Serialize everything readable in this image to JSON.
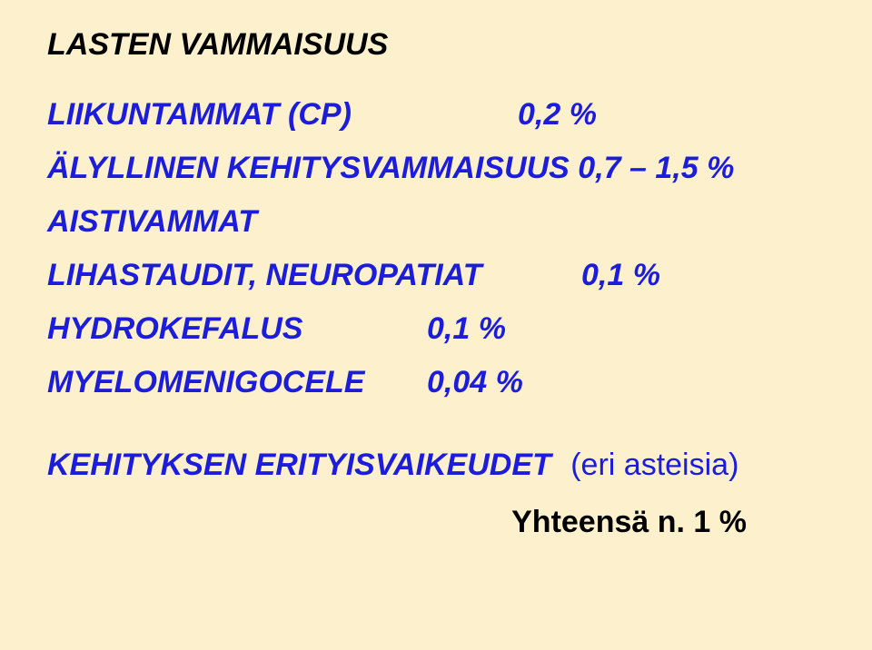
{
  "colors": {
    "background": "#fcf1cc",
    "title_color": "#000000",
    "body_color": "#1c1cdb",
    "total_color": "#000000"
  },
  "typography": {
    "body_font": "Comic Sans MS",
    "body_fontsize_pt": 26,
    "body_weight": "bold",
    "body_style": "italic",
    "total_font": "Arial",
    "total_fontsize_pt": 26,
    "total_weight": "bold",
    "total_style": "normal"
  },
  "title": "LASTEN VAMMAISUUS",
  "rows": [
    {
      "label": "LIIKUNTAMMAT (CP)",
      "value": "0,2 %"
    },
    {
      "label": "ÄLYLLINEN KEHITYSVAMMAISUUS 0,7 – 1,5 %",
      "value": ""
    },
    {
      "label": "AISTIVAMMAT",
      "value": ""
    },
    {
      "label": "LIHASTAUDIT, NEUROPATIAT",
      "value": "0,1 %"
    },
    {
      "label": "HYDROKEFALUS",
      "value": "0,1 %"
    },
    {
      "label": "MYELOMENIGOCELE",
      "value": "0,04 %"
    }
  ],
  "footer": {
    "label": "KEHITYKSEN ERITYISVAIKEUDET",
    "note": "(eri asteisia)"
  },
  "total": "Yhteensä n. 1 %"
}
